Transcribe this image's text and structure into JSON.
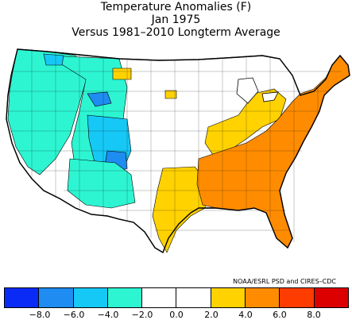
{
  "title": {
    "line1": "Temperature Anomalies (F)",
    "line2": "Jan 1975",
    "line3": "Versus 1981–2010 Longterm Average"
  },
  "credit": "NOAA/ESRL PSD and CIRES–CDC",
  "legend": {
    "colors": [
      "#0a2bf5",
      "#1e8cf0",
      "#16c8f5",
      "#2df5d2",
      "#ffffff",
      "#ffffff",
      "#ffd200",
      "#ff8c00",
      "#ff3c00",
      "#dc0000"
    ],
    "ticks": [
      "−8.0",
      "−6.0",
      "−4.0",
      "−2.0",
      "0.0",
      "2.0",
      "4.0",
      "6.0",
      "8.0"
    ]
  },
  "map_regions": {
    "west_cool": "#2df5d2",
    "rockies_cooler": "#16c8f5",
    "colorado_coldest": "#1e8cf0",
    "southeast_warm": "#ff8c00",
    "midwest_mild_warm": "#ffd200",
    "neutral": "#ffffff"
  }
}
